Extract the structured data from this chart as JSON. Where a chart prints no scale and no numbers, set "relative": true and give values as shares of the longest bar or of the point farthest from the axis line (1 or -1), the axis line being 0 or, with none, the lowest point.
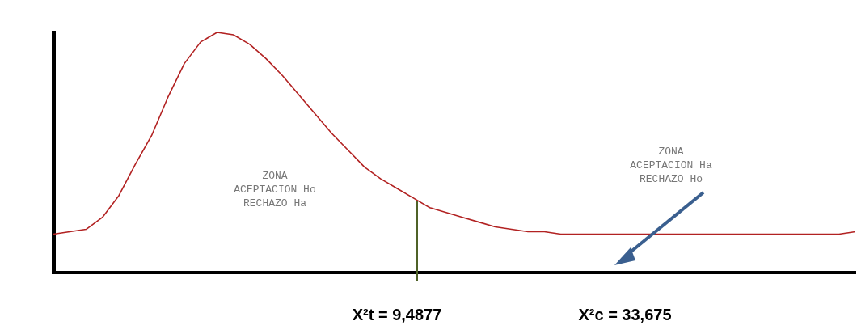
{
  "chart_data": {
    "type": "line",
    "relative": true,
    "legend": false,
    "grid": false,
    "marker": "none",
    "categories": [
      null,
      null,
      null,
      null,
      null,
      null,
      null,
      null,
      null,
      null,
      null,
      null,
      null,
      null,
      null,
      null,
      null,
      null,
      null,
      null,
      null,
      null,
      null,
      null,
      null,
      null,
      null,
      null,
      null,
      null,
      null,
      null,
      null,
      null,
      null,
      null,
      null,
      null,
      null,
      null,
      null,
      null,
      null,
      null,
      null,
      null,
      null,
      null,
      null,
      null
    ],
    "series": [
      {
        "color": "#b22222",
        "values": [
          0.16,
          0.17,
          0.18,
          0.23,
          0.32,
          0.45,
          0.57,
          0.73,
          0.87,
          0.96,
          1,
          0.99,
          0.95,
          0.89,
          0.82,
          0.74,
          0.66,
          0.58,
          0.51,
          0.44,
          0.39,
          0.35,
          0.31,
          0.27,
          0.25,
          0.23,
          0.21,
          0.19,
          0.18,
          0.17,
          0.17,
          0.16,
          0.16,
          0.16,
          0.16,
          0.16,
          0.16,
          0.16,
          0.16,
          0.16,
          0.16,
          0.16,
          0.16,
          0.16,
          0.16,
          0.16,
          0.16,
          0.16,
          0.16,
          0.17
        ]
      }
    ],
    "annotations": [
      "ZONA\nACEPTACION Ho\nRECHAZO Ha",
      "ZONA\nACEPTACION Ha\nRECHAZO Ho",
      "X²t = 9,4877",
      "X²c = 33,675"
    ]
  }
}
